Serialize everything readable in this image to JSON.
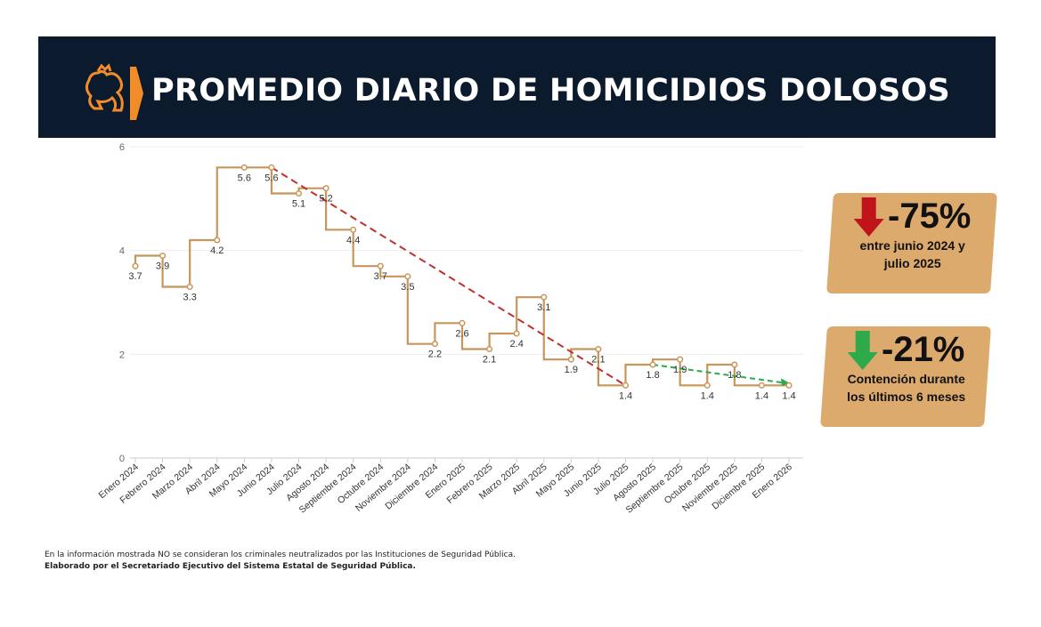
{
  "header": {
    "title": "PROMEDIO DIARIO DE HOMICIDIOS DOLOSOS",
    "logo": "lion-crest-logo",
    "colors": {
      "background": "#0c1a2e",
      "accent": "#f28c28"
    }
  },
  "chart_data": {
    "type": "line",
    "step": true,
    "categories": [
      "Enero 2024",
      "Febrero 2024",
      "Marzo 2024",
      "Abril 2024",
      "Mayo 2024",
      "Junio 2024",
      "Julio 2024",
      "Agosto 2024",
      "Septiembre 2024",
      "Octubre 2024",
      "Noviembre 2024",
      "Diciembre 2024",
      "Enero 2025",
      "Febrero 2025",
      "Marzo 2025",
      "Abril 2025",
      "Mayo 2025",
      "Junio 2025",
      "Julio 2025",
      "Agosto 2025",
      "Septiembre 2025",
      "Octubre 2025",
      "Noviembre 2025",
      "Diciembre 2025",
      "Enero 2026"
    ],
    "values": [
      3.7,
      3.9,
      3.3,
      4.2,
      5.6,
      5.6,
      5.1,
      5.2,
      4.4,
      3.7,
      3.5,
      2.2,
      2.6,
      2.1,
      2.4,
      3.1,
      1.9,
      2.1,
      1.4,
      1.8,
      1.9,
      1.4,
      1.8,
      1.4,
      1.4
    ],
    "ylim": [
      0,
      6
    ],
    "yticks": [
      "0",
      "2",
      "4",
      "6"
    ],
    "grid": true,
    "line_color": "#c8955a",
    "trendlines": [
      {
        "from": "Junio 2024",
        "to": "Julio 2025",
        "y": [
          5.6,
          1.4
        ],
        "color": "#c0302b",
        "style": "dashed"
      },
      {
        "from": "Agosto 2025",
        "to": "Enero 2026",
        "y": [
          1.8,
          1.45
        ],
        "color": "#2eaa4a",
        "style": "dashed-arrow"
      }
    ]
  },
  "callouts": [
    {
      "pct": "-75%",
      "text1": "entre junio 2024 y",
      "text2": "julio 2025",
      "arrow": "arrow-down-red-icon",
      "color": "#c0141b"
    },
    {
      "pct": "-21%",
      "text1": "Contención durante",
      "text2": "los últimos 6 meses",
      "arrow": "arrow-down-green-icon",
      "color": "#2eaa4a"
    }
  ],
  "footer": {
    "note": "En la información mostrada NO se consideran los criminales neutralizados por las Instituciones de Seguridad Pública.",
    "credit": "Elaborado por el Secretariado Ejecutivo del Sistema Estatal de Seguridad Pública."
  }
}
